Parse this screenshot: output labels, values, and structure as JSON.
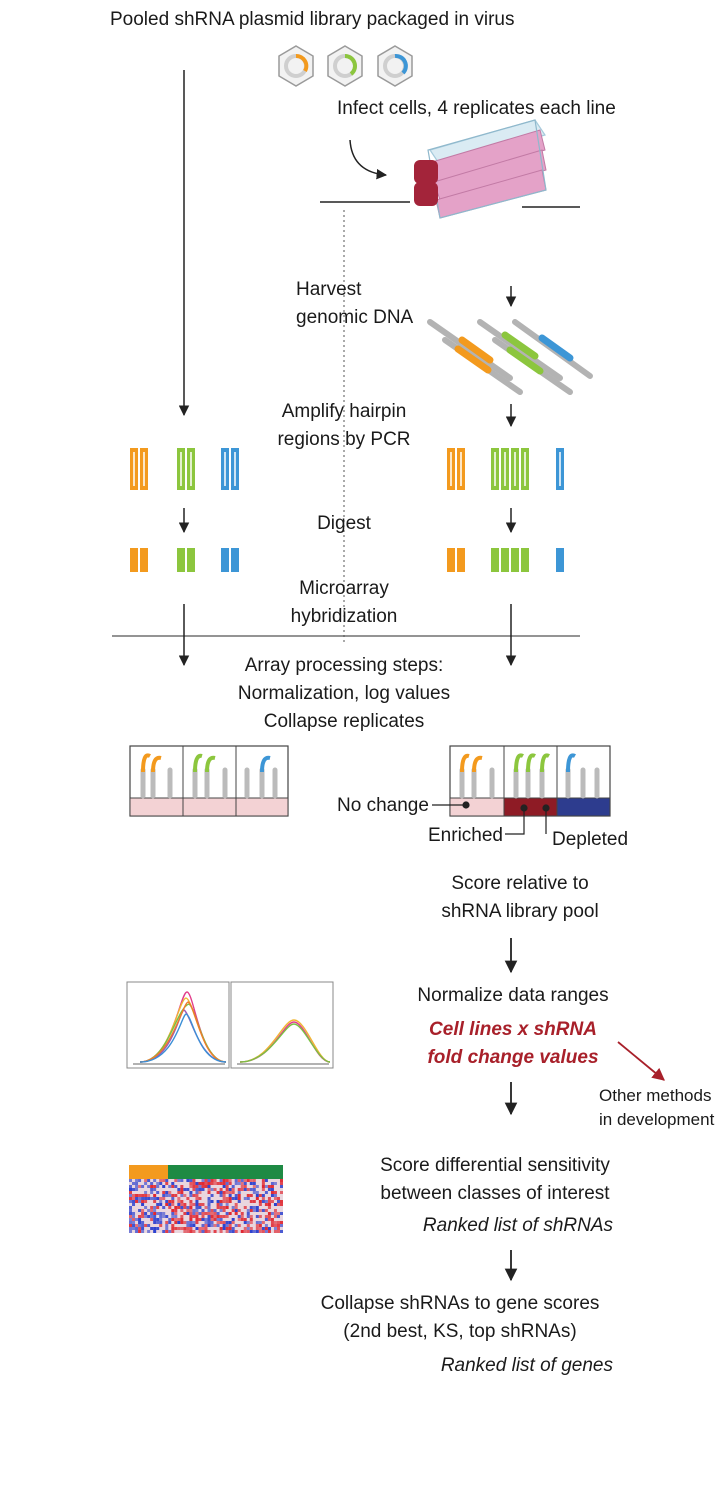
{
  "labels": {
    "title": "Pooled shRNA plasmid library packaged in virus",
    "infect": "Infect cells, 4 replicates each line",
    "harvest": [
      "Harvest",
      "genomic DNA"
    ],
    "amplify": [
      "Amplify hairpin",
      "regions by PCR"
    ],
    "digest": "Digest",
    "microarray": [
      "Microarray",
      "hybridization"
    ],
    "processing": [
      "Array processing steps:",
      "Normalization, log values",
      "Collapse replicates"
    ],
    "no_change": "No change",
    "enriched": "Enriched",
    "depleted": "Depleted",
    "score_relative": [
      "Score relative to",
      "shRNA library pool"
    ],
    "normalize": "Normalize data ranges",
    "fold_change": [
      "Cell lines x shRNA",
      "fold change values"
    ],
    "other_methods": [
      "Other methods",
      "in development"
    ],
    "differential": [
      "Score differential sensitivity",
      "between classes of interest"
    ],
    "ranked_shrnas": "Ranked list of shRNAs",
    "collapse": [
      "Collapse shRNAs to gene scores",
      "(2nd best, KS, top shRNAs)"
    ],
    "ranked_genes": "Ranked list of genes"
  },
  "colors": {
    "orange": "#f39a1e",
    "green": "#8cc63e",
    "blue": "#3d96d6",
    "pink": "#f3d2d4",
    "enriched": "#8e1b25",
    "depleted": "#2d3c8e",
    "flask": "#e4a2c8",
    "flask_cap": "#a3243a",
    "red_text": "#a8202a",
    "heatmap_orange": "#f39a1e",
    "heatmap_green": "#1e8a44"
  },
  "icons": [
    "plasmid-icon",
    "flask-icon",
    "dna-fragment-icon",
    "hairpin-icon",
    "array-well-icon",
    "density-plot-icon",
    "heatmap-icon"
  ]
}
